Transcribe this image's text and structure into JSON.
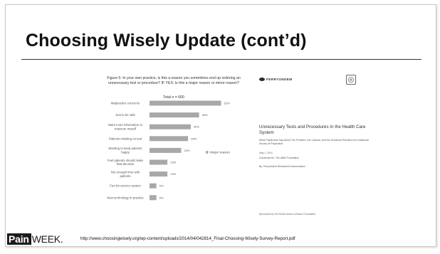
{
  "slide": {
    "title": "Choosing Wisely Update (cont’d)"
  },
  "figure": {
    "caption": "Figure 5: In your own practice, is this a reason you sometimes end up ordering an unnecessary test or procedure? IF YES: Is this a major reason or minor reason?",
    "total": "Total n = 600"
  },
  "chart_data": {
    "type": "bar",
    "orientation": "horizontal",
    "categories": [
      "Malpractice concerns",
      "Just to be safe",
      "Want more information to reassure myself",
      "Patients insisting on test",
      "Wanting to keep patients happy",
      "Feel patients should make final decision",
      "Not enough time with patients",
      "Fee-for-service system",
      "New technology in practice"
    ],
    "series": [
      {
        "name": "Major reason",
        "values": [
          52,
          36,
          30,
          28,
          23,
          13,
          13,
          5,
          5
        ]
      }
    ],
    "value_labels": [
      "52%",
      "36%",
      "30%",
      "28%",
      "23%",
      "13%",
      "13%",
      "5%",
      "5%"
    ],
    "xlim": [
      0,
      60
    ],
    "legend": "right",
    "color": "#a8a8a8"
  },
  "cover": {
    "logo_text": "PERRYUNDEM",
    "title": "Unnecessary Tests and Procedures In the Health Care System",
    "subtitle": "What Physicians Say About The Problem, the Causes, and the Solutions Results from a National Survey of Physicians",
    "date": "May 1, 2014",
    "conducted": "Conducted for: The ABIM Foundation",
    "by": "By: PerryUndem Research/Communication",
    "sponsor": "Sponsored by the Robert Wood Johnson Foundation"
  },
  "footer": {
    "brand_box": "Pain",
    "brand_rest": "WEEK.",
    "url": "http://www.choosingwisely.org/wp-content/uploads/2014/04/042814_Final-Choosing-Wisely-Survey-Report.pdf"
  }
}
